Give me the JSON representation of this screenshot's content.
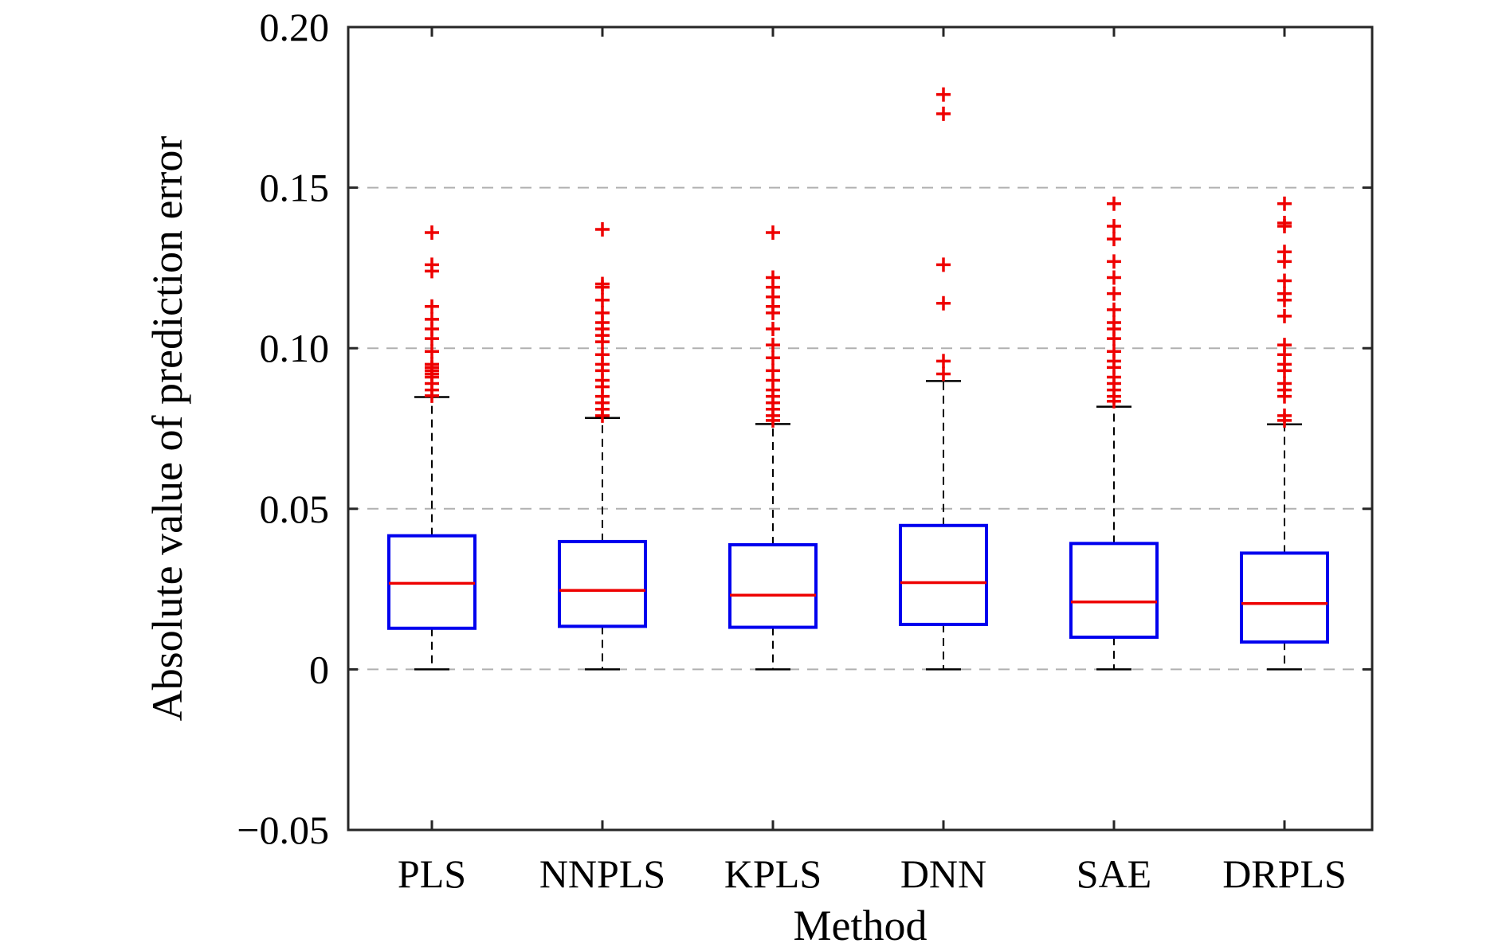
{
  "chart_data": {
    "type": "box",
    "xlabel": "Method",
    "ylabel": "Absolute value of prediction error",
    "ylim": [
      -0.05,
      0.2
    ],
    "yticks": [
      -0.05,
      0,
      0.05,
      0.1,
      0.15,
      0.2
    ],
    "ytick_labels": [
      "−0.05",
      "0",
      "0.05",
      "0.10",
      "0.15",
      "0.20"
    ],
    "grid": "horizontal dashed",
    "categories": [
      "PLS",
      "NNPLS",
      "KPLS",
      "DNN",
      "SAE",
      "DRPLS"
    ],
    "boxes": [
      {
        "name": "PLS",
        "whisker_low": 0,
        "q1": 0.0128,
        "median": 0.0268,
        "q3": 0.0416,
        "whisker_high": 0.0848,
        "outliers": [
          0.0852,
          0.087,
          0.089,
          0.091,
          0.092,
          0.093,
          0.094,
          0.095,
          0.099,
          0.103,
          0.106,
          0.109,
          0.113,
          0.124,
          0.126,
          0.136
        ]
      },
      {
        "name": "NNPLS",
        "whisker_low": 0,
        "q1": 0.0134,
        "median": 0.0246,
        "q3": 0.0398,
        "whisker_high": 0.0783,
        "outliers": [
          0.079,
          0.081,
          0.083,
          0.085,
          0.088,
          0.09,
          0.093,
          0.095,
          0.098,
          0.102,
          0.104,
          0.106,
          0.108,
          0.111,
          0.115,
          0.119,
          0.12,
          0.137
        ]
      },
      {
        "name": "KPLS",
        "whisker_low": 0,
        "q1": 0.0131,
        "median": 0.0231,
        "q3": 0.0388,
        "whisker_high": 0.0764,
        "outliers": [
          0.0775,
          0.079,
          0.081,
          0.083,
          0.085,
          0.087,
          0.09,
          0.093,
          0.097,
          0.101,
          0.106,
          0.111,
          0.113,
          0.116,
          0.119,
          0.122,
          0.136
        ]
      },
      {
        "name": "DNN",
        "whisker_low": 0,
        "q1": 0.014,
        "median": 0.027,
        "q3": 0.0448,
        "whisker_high": 0.0898,
        "outliers": [
          0.092,
          0.096,
          0.114,
          0.126,
          0.173,
          0.179
        ]
      },
      {
        "name": "SAE",
        "whisker_low": 0,
        "q1": 0.01,
        "median": 0.021,
        "q3": 0.0392,
        "whisker_high": 0.0818,
        "outliers": [
          0.0835,
          0.085,
          0.087,
          0.089,
          0.091,
          0.094,
          0.096,
          0.099,
          0.103,
          0.106,
          0.108,
          0.112,
          0.117,
          0.122,
          0.127,
          0.134,
          0.138,
          0.145
        ]
      },
      {
        "name": "DRPLS",
        "whisker_low": 0,
        "q1": 0.0085,
        "median": 0.0205,
        "q3": 0.0362,
        "whisker_high": 0.0763,
        "outliers": [
          0.0775,
          0.079,
          0.085,
          0.087,
          0.089,
          0.093,
          0.095,
          0.098,
          0.101,
          0.11,
          0.115,
          0.117,
          0.121,
          0.127,
          0.13,
          0.138,
          0.139,
          0.145
        ]
      }
    ],
    "colors": {
      "box": "#0000ee",
      "median": "#ee0000",
      "outlier": "#ee0000",
      "whisker": "#000000",
      "grid": "#b0b0b0"
    }
  }
}
